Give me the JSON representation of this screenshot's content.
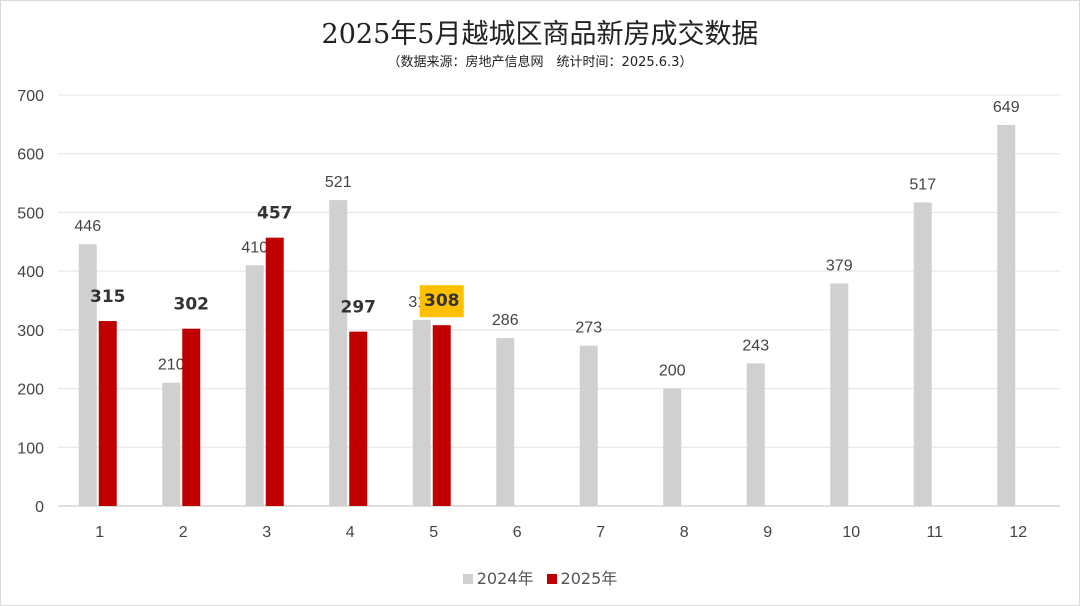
{
  "chart_data": {
    "type": "bar",
    "title": "2025年5月越城区商品新房成交数据",
    "subtitle": "（数据来源：房地产信息网　统计时间：2025.6.3）",
    "categories": [
      "1",
      "2",
      "3",
      "4",
      "5",
      "6",
      "7",
      "8",
      "9",
      "10",
      "11",
      "12"
    ],
    "series": [
      {
        "name": "2024年",
        "color": "#d0d0d0",
        "values": [
          446,
          210,
          410,
          521,
          317,
          286,
          273,
          200,
          243,
          379,
          517,
          649
        ]
      },
      {
        "name": "2025年",
        "color": "#c00000",
        "values": [
          315,
          302,
          457,
          297,
          308,
          null,
          null,
          null,
          null,
          null,
          null,
          null
        ]
      }
    ],
    "ylim": [
      0,
      700
    ],
    "yticks": [
      0,
      100,
      200,
      300,
      400,
      500,
      600,
      700
    ],
    "grid": true,
    "legend_position": "bottom",
    "highlight": {
      "series": "2025年",
      "category": "5",
      "color": "#ffc000"
    }
  }
}
